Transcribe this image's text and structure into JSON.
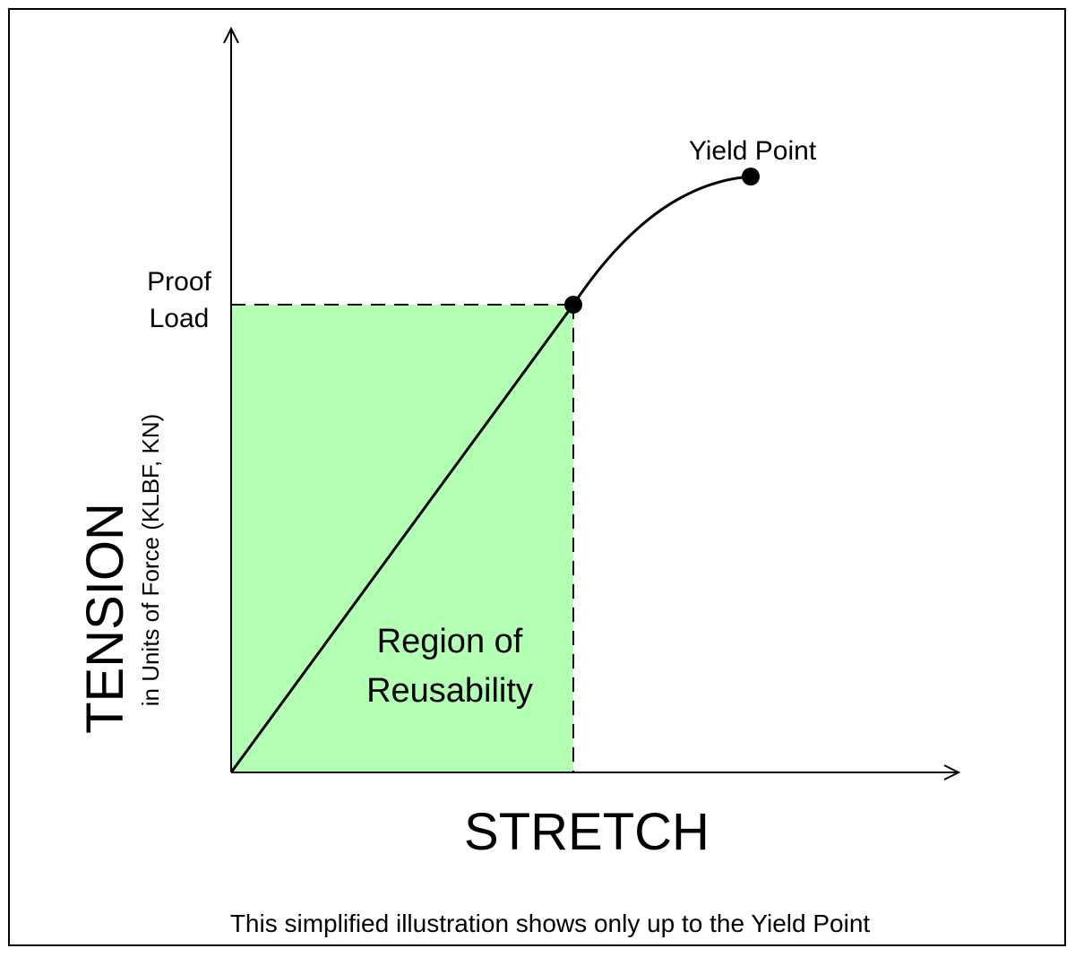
{
  "axes": {
    "y_label": "TENSION",
    "y_sublabel": "in Units of Force (KLBF, KN)",
    "x_label": "STRETCH"
  },
  "annotations": {
    "yield_point": "Yield Point",
    "proof_load": [
      "Proof",
      "Load"
    ],
    "region": [
      "Region of",
      "Reusability"
    ]
  },
  "caption": "This simplified illustration shows only up to the Yield Point"
}
